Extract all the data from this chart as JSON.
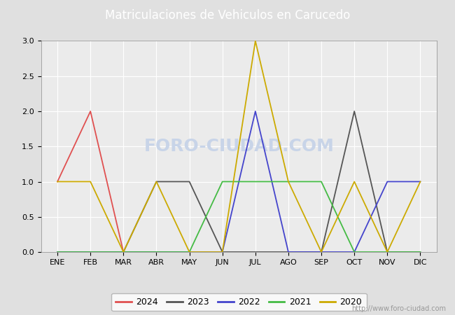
{
  "title": "Matriculaciones de Vehiculos en Carucedo",
  "title_bg_color": "#4d8fd4",
  "title_text_color": "#ffffff",
  "months": [
    "ENE",
    "FEB",
    "MAR",
    "ABR",
    "MAY",
    "JUN",
    "JUL",
    "AGO",
    "SEP",
    "OCT",
    "NOV",
    "DIC"
  ],
  "series": {
    "2024": {
      "color": "#e05050",
      "data": [
        1,
        2,
        0,
        0,
        0,
        null,
        null,
        null,
        null,
        null,
        null,
        null
      ]
    },
    "2023": {
      "color": "#555555",
      "data": [
        0,
        0,
        0,
        1,
        1,
        0,
        0,
        0,
        0,
        2,
        0,
        0
      ]
    },
    "2022": {
      "color": "#4444cc",
      "data": [
        0,
        0,
        0,
        0,
        0,
        0,
        2,
        0,
        0,
        0,
        1,
        1
      ]
    },
    "2021": {
      "color": "#44bb44",
      "data": [
        0,
        0,
        0,
        0,
        0,
        1,
        1,
        1,
        1,
        0,
        0,
        0
      ]
    },
    "2020": {
      "color": "#ccaa00",
      "data": [
        1,
        1,
        0,
        1,
        0,
        0,
        3,
        1,
        0,
        1,
        0,
        1
      ]
    }
  },
  "ylim": [
    0.0,
    3.0
  ],
  "yticks": [
    0.0,
    0.5,
    1.0,
    1.5,
    2.0,
    2.5,
    3.0
  ],
  "background_color": "#e0e0e0",
  "plot_bg_color": "#ebebeb",
  "grid_color": "#ffffff",
  "watermark_url": "http://www.foro-ciudad.com",
  "watermark_chart": "FORO-CIUDAD.COM",
  "watermark_color": "#c8d4e8"
}
